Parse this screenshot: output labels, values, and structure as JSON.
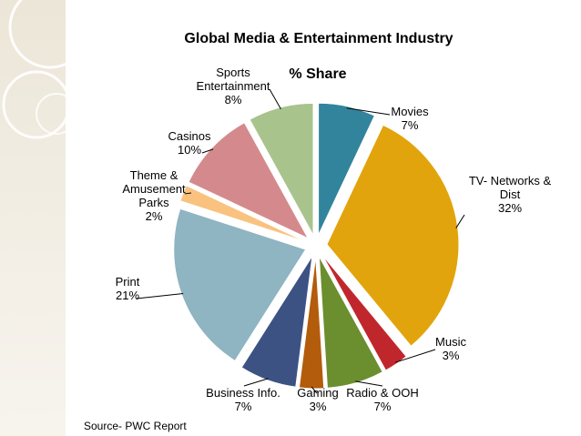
{
  "chart_data": {
    "type": "pie",
    "title": "Global Media & Entertainment Industry",
    "subtitle": "% Share",
    "source": "Source- PWC Report",
    "slices": [
      {
        "label": "Movies",
        "display": "7%",
        "value": 7,
        "color": "#31849b"
      },
      {
        "label": "TV- Networks & Dist",
        "display": "32%",
        "value": 32,
        "color": "#e2a40c"
      },
      {
        "label": "Music",
        "display": "3%",
        "value": 3,
        "color": "#c0272d"
      },
      {
        "label": "Radio & OOH",
        "display": "7%",
        "value": 7,
        "color": "#6b8e2f"
      },
      {
        "label": "Gaming",
        "display": "3%",
        "value": 3,
        "color": "#b35c0b"
      },
      {
        "label": "Business Info.",
        "display": "7%",
        "value": 7,
        "color": "#3c5283"
      },
      {
        "label": "Print",
        "display": "21%",
        "value": 21,
        "color": "#8fb4c2"
      },
      {
        "label": "Theme & Amusement Parks",
        "display": "2%",
        "value": 2,
        "color": "#f9c27f"
      },
      {
        "label": "Casinos",
        "display": "10%",
        "value": 10,
        "color": "#d48a8c"
      },
      {
        "label": "Sports Entertainment",
        "display": "8%",
        "value": 8,
        "color": "#a9c38d"
      }
    ]
  }
}
